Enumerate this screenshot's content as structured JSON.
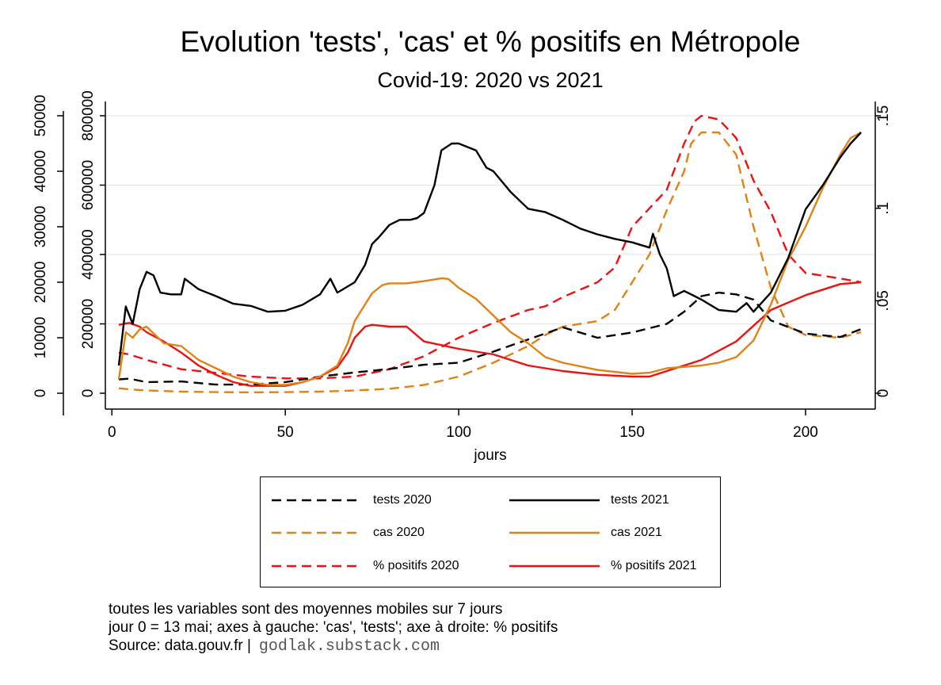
{
  "title": "Evolution 'tests', 'cas' et % positifs en Métropole",
  "subtitle": "Covid-19: 2020 vs 2021",
  "notes": {
    "line1": "toutes les variables sont des moyennes mobiles sur 7 jours",
    "line2": "jour 0 = 13 mai; axes à gauche: 'cas', 'tests'; axe à droite: % positifs",
    "line3": "Source: data.gouv.fr |",
    "credit": "godlak.substack.com"
  },
  "chart_data": {
    "type": "line",
    "xlabel": "jours",
    "xlim": [
      0,
      220
    ],
    "x_ticks": [
      0,
      50,
      100,
      150,
      200
    ],
    "left_axis_cas": {
      "label": "",
      "ylim": [
        0,
        50000
      ],
      "ticks": [
        0,
        10000,
        20000,
        30000,
        40000,
        50000
      ]
    },
    "left_axis_tests": {
      "label": "",
      "ylim": [
        0,
        800000
      ],
      "ticks": [
        0,
        200000,
        400000,
        600000,
        800000
      ]
    },
    "right_axis": {
      "label": "",
      "ylim": [
        0,
        0.15
      ],
      "ticks": [
        0,
        0.05,
        0.1,
        0.15
      ],
      "tick_labels": [
        "0",
        ".05",
        ".1",
        ".15"
      ]
    },
    "grid": true,
    "legend": "bottom",
    "series": [
      {
        "name": "tests 2020",
        "axis": "tests",
        "color": "#000000",
        "dash": true,
        "x": [
          2,
          5,
          10,
          20,
          30,
          40,
          50,
          60,
          70,
          80,
          90,
          100,
          110,
          120,
          130,
          140,
          150,
          160,
          165,
          170,
          175,
          180,
          185,
          190,
          200,
          210,
          216
        ],
        "y": [
          40000,
          42000,
          32000,
          34000,
          25000,
          25000,
          32000,
          48000,
          60000,
          70000,
          82000,
          88000,
          120000,
          155000,
          190000,
          160000,
          175000,
          200000,
          235000,
          280000,
          290000,
          285000,
          270000,
          210000,
          172000,
          162000,
          185000
        ]
      },
      {
        "name": "tests 2021",
        "axis": "tests",
        "color": "#000000",
        "dash": false,
        "x": [
          2,
          4,
          6,
          8,
          10,
          12,
          14,
          17,
          20,
          21,
          25,
          30,
          35,
          40,
          45,
          50,
          55,
          60,
          63,
          65,
          70,
          73,
          75,
          77,
          80,
          83,
          86,
          88,
          90,
          93,
          95,
          98,
          100,
          105,
          108,
          110,
          115,
          120,
          125,
          130,
          135,
          140,
          145,
          150,
          155,
          156,
          158,
          160,
          162,
          165,
          168,
          170,
          175,
          180,
          183,
          185,
          190,
          195,
          200,
          205,
          210,
          213,
          216
        ],
        "y": [
          80000,
          250000,
          200000,
          300000,
          350000,
          340000,
          290000,
          285000,
          285000,
          330000,
          300000,
          280000,
          258000,
          252000,
          235000,
          238000,
          255000,
          285000,
          330000,
          290000,
          320000,
          370000,
          430000,
          450000,
          485000,
          500000,
          500000,
          505000,
          520000,
          600000,
          700000,
          720000,
          720000,
          700000,
          650000,
          640000,
          580000,
          532000,
          522000,
          500000,
          475000,
          458000,
          445000,
          435000,
          420000,
          460000,
          400000,
          360000,
          280000,
          295000,
          280000,
          270000,
          240000,
          235000,
          260000,
          235000,
          290000,
          390000,
          530000,
          600000,
          680000,
          720000,
          752000
        ]
      },
      {
        "name": "cas 2020",
        "axis": "cas",
        "color": "#e08214",
        "dash": true,
        "x": [
          2,
          5,
          10,
          20,
          30,
          40,
          50,
          60,
          70,
          80,
          90,
          100,
          110,
          120,
          125,
          130,
          140,
          145,
          150,
          155,
          160,
          165,
          167,
          170,
          175,
          180,
          185,
          190,
          195,
          200,
          210,
          216
        ],
        "y": [
          900,
          700,
          500,
          300,
          200,
          150,
          200,
          300,
          500,
          800,
          1500,
          3000,
          5500,
          8500,
          10500,
          12000,
          13000,
          15000,
          20000,
          25000,
          33000,
          40000,
          45000,
          47000,
          47000,
          43000,
          30000,
          19000,
          12000,
          10500,
          10000,
          11000
        ]
      },
      {
        "name": "cas 2021",
        "axis": "cas",
        "color": "#e08214",
        "dash": false,
        "x": [
          2,
          4,
          6,
          8,
          10,
          15,
          20,
          25,
          30,
          35,
          40,
          45,
          50,
          55,
          60,
          65,
          68,
          70,
          73,
          75,
          78,
          80,
          85,
          90,
          95,
          97,
          100,
          105,
          110,
          115,
          120,
          125,
          130,
          140,
          150,
          155,
          160,
          170,
          175,
          180,
          185,
          190,
          195,
          200,
          205,
          210,
          213,
          216
        ],
        "y": [
          2500,
          11000,
          10000,
          11500,
          12000,
          9000,
          8500,
          6000,
          4500,
          3000,
          2000,
          1500,
          1500,
          2000,
          3000,
          5000,
          9000,
          13000,
          16000,
          18000,
          19500,
          19800,
          19800,
          20200,
          20700,
          20600,
          19000,
          17000,
          14000,
          11000,
          9000,
          6500,
          5500,
          4200,
          3500,
          3700,
          4500,
          5000,
          5500,
          6500,
          9500,
          16000,
          24000,
          30000,
          37000,
          43000,
          46000,
          47000
        ]
      },
      {
        "name": "% positifs 2020",
        "axis": "pos",
        "color": "#ee1111",
        "dash": true,
        "x": [
          2,
          5,
          10,
          20,
          30,
          40,
          50,
          60,
          70,
          80,
          90,
          100,
          110,
          120,
          125,
          130,
          140,
          145,
          150,
          155,
          160,
          162,
          165,
          168,
          170,
          175,
          180,
          185,
          190,
          195,
          200,
          210,
          216
        ],
        "y": [
          0.022,
          0.021,
          0.018,
          0.013,
          0.011,
          0.009,
          0.008,
          0.008,
          0.009,
          0.013,
          0.02,
          0.03,
          0.038,
          0.045,
          0.047,
          0.052,
          0.06,
          0.068,
          0.09,
          0.1,
          0.11,
          0.12,
          0.135,
          0.147,
          0.15,
          0.148,
          0.138,
          0.115,
          0.098,
          0.075,
          0.065,
          0.062,
          0.06
        ]
      },
      {
        "name": "% positifs 2021",
        "axis": "pos",
        "color": "#ee1111",
        "dash": false,
        "x": [
          2,
          5,
          8,
          10,
          15,
          20,
          25,
          30,
          35,
          40,
          45,
          50,
          55,
          60,
          65,
          68,
          70,
          73,
          75,
          80,
          85,
          90,
          95,
          100,
          110,
          120,
          130,
          140,
          150,
          155,
          160,
          170,
          180,
          190,
          200,
          210,
          216
        ],
        "y": [
          0.037,
          0.038,
          0.036,
          0.033,
          0.028,
          0.022,
          0.015,
          0.01,
          0.006,
          0.004,
          0.004,
          0.004,
          0.006,
          0.009,
          0.014,
          0.022,
          0.03,
          0.036,
          0.037,
          0.036,
          0.036,
          0.028,
          0.026,
          0.024,
          0.021,
          0.015,
          0.012,
          0.01,
          0.009,
          0.009,
          0.012,
          0.018,
          0.028,
          0.045,
          0.053,
          0.059,
          0.06
        ]
      }
    ]
  }
}
